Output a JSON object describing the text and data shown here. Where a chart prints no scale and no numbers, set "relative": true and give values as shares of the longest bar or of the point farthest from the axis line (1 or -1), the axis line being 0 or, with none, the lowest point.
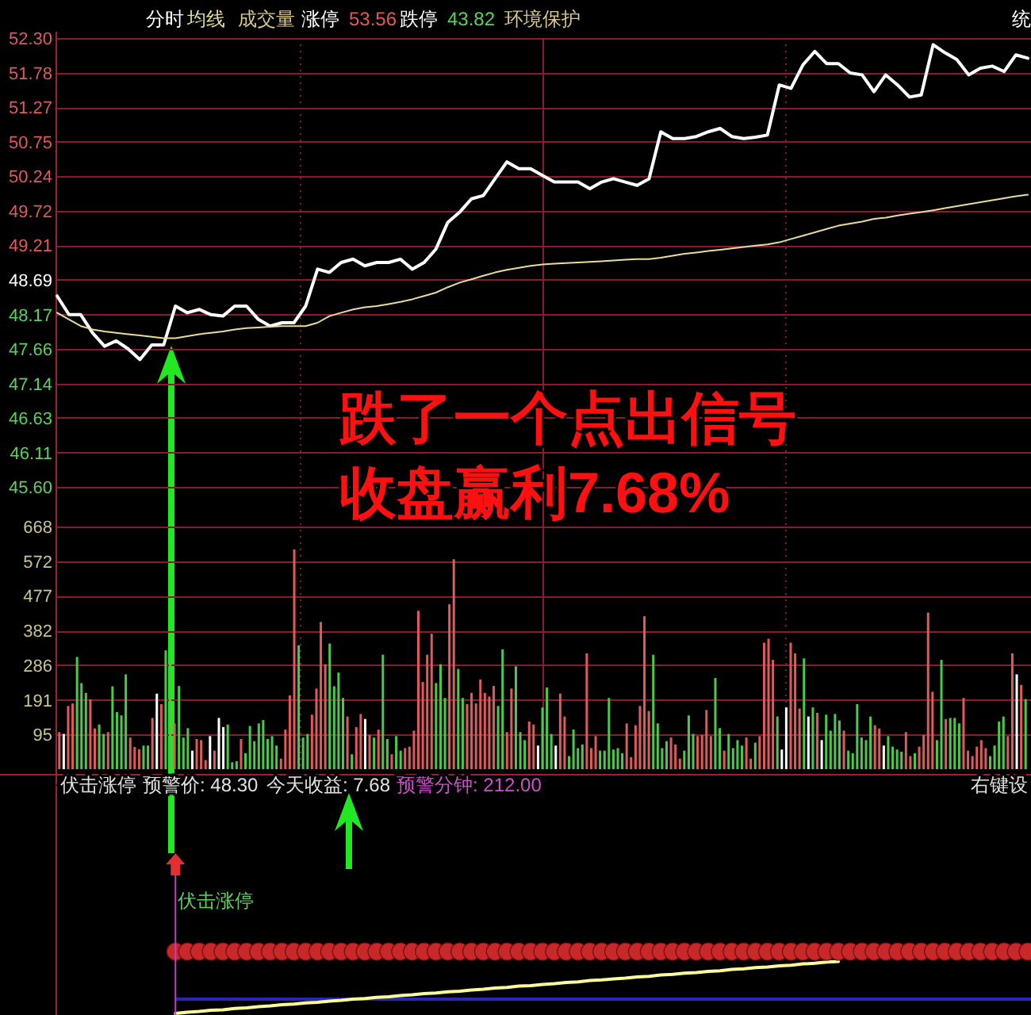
{
  "chart_data": [
    {
      "type": "line",
      "categories": [
        null,
        null,
        null,
        null,
        null,
        null,
        null,
        null,
        null,
        null,
        null,
        null,
        null,
        null,
        null,
        null,
        null,
        null,
        null,
        null,
        null,
        null,
        null,
        null,
        null,
        null,
        null,
        null,
        null,
        null,
        null,
        null,
        null,
        null,
        null,
        null,
        null,
        null,
        null,
        null,
        null,
        null,
        null,
        null,
        null,
        null,
        null,
        null,
        null,
        null,
        null,
        null,
        null,
        null,
        null,
        null,
        null,
        null,
        null,
        null,
        null,
        null,
        null,
        null,
        null,
        null,
        null,
        null,
        null,
        null,
        null,
        null,
        null,
        null,
        null,
        null,
        null,
        null,
        null,
        null,
        null,
        null,
        null
      ],
      "series": [
        {
          "name": "分时",
          "color": "#ffffff",
          "values": [
            48.45,
            48.17,
            48.17,
            47.9,
            47.7,
            47.78,
            47.66,
            47.5,
            47.72,
            47.72,
            48.3,
            48.2,
            48.25,
            48.17,
            48.15,
            48.3,
            48.3,
            48.1,
            48.0,
            48.05,
            48.05,
            48.3,
            48.85,
            48.8,
            48.95,
            49.0,
            48.9,
            48.95,
            48.95,
            49.0,
            48.85,
            48.95,
            49.15,
            49.55,
            49.7,
            49.9,
            49.95,
            50.2,
            50.45,
            50.35,
            50.35,
            50.25,
            50.15,
            50.15,
            50.15,
            50.05,
            50.15,
            50.2,
            50.15,
            50.1,
            50.2,
            50.9,
            50.8,
            50.8,
            50.83,
            50.9,
            50.95,
            50.83,
            50.8,
            50.82,
            50.85,
            51.6,
            51.55,
            51.9,
            52.1,
            51.92,
            51.92,
            51.78,
            51.75,
            51.5,
            51.75,
            51.6,
            51.42,
            51.45,
            52.2,
            52.08,
            51.98,
            51.75,
            51.85,
            51.88,
            51.8,
            52.05,
            52.0
          ]
        },
        {
          "name": "均线",
          "color": "#e8dc9c",
          "values": [
            48.2,
            48.1,
            48.0,
            47.95,
            47.92,
            47.9,
            47.88,
            47.86,
            47.84,
            47.82,
            47.82,
            47.85,
            47.88,
            47.9,
            47.92,
            47.95,
            47.97,
            47.98,
            47.99,
            48.0,
            48.0,
            48.0,
            48.05,
            48.15,
            48.2,
            48.25,
            48.28,
            48.3,
            48.33,
            48.36,
            48.4,
            48.45,
            48.5,
            48.58,
            48.65,
            48.7,
            48.75,
            48.8,
            48.84,
            48.87,
            48.9,
            48.92,
            48.93,
            48.94,
            48.95,
            48.96,
            48.97,
            48.98,
            48.99,
            49.0,
            49.0,
            49.02,
            49.05,
            49.08,
            49.1,
            49.12,
            49.14,
            49.16,
            49.18,
            49.2,
            49.22,
            49.25,
            49.3,
            49.35,
            49.4,
            49.45,
            49.5,
            49.53,
            49.56,
            49.6,
            49.62,
            49.65,
            49.68,
            49.7,
            49.73,
            49.76,
            49.79,
            49.82,
            49.85,
            49.88,
            49.91,
            49.94,
            49.96
          ]
        }
      ],
      "ylim": [
        45.6,
        52.3
      ],
      "yticks": [
        {
          "value": 45.6,
          "label": "45.60"
        },
        46.11,
        46.63,
        47.14,
        47.66,
        48.17,
        48.69,
        49.21,
        49.72,
        50.24,
        50.75,
        51.27,
        51.78,
        {
          "value": 52.3,
          "label": "52.30"
        }
      ],
      "grid": true,
      "legend": "top left",
      "tick_labels": "y",
      "annotations": [
        "成交量",
        "涨停",
        "53.56",
        "跌停",
        "43.82",
        "环境保护",
        "统",
        "跌了一个点出信号",
        "收盘赢利7.68%"
      ]
    },
    {
      "type": "bar",
      "categories": [
        null,
        null,
        null,
        null,
        null,
        null,
        null,
        null,
        null,
        null,
        null,
        null,
        null,
        null,
        null,
        null,
        null,
        null,
        null,
        null,
        null,
        null,
        null,
        null,
        null,
        null,
        null,
        null,
        null,
        null,
        null,
        null,
        null,
        null,
        null,
        null,
        null,
        null,
        null,
        null,
        null,
        null,
        null,
        null,
        null,
        null,
        null,
        null,
        null,
        null,
        null,
        null,
        null,
        null,
        null,
        null,
        null,
        null,
        null,
        null,
        null,
        null,
        null,
        null,
        null,
        null,
        null,
        null,
        null,
        null,
        null,
        null,
        null,
        null,
        null,
        null,
        null,
        null,
        null,
        null,
        null,
        null,
        null,
        null,
        null,
        null,
        null,
        null,
        null,
        null,
        null,
        null,
        null,
        null,
        null,
        null,
        null,
        null,
        null,
        null,
        null,
        null,
        null,
        null,
        null,
        null,
        null,
        null,
        null,
        null,
        null,
        null,
        null,
        null,
        null,
        null,
        null,
        null,
        null,
        null,
        null,
        null,
        null,
        null,
        null,
        null,
        null,
        null,
        null,
        null,
        null,
        null,
        null,
        null,
        null,
        null,
        null,
        null,
        null,
        null,
        null,
        null,
        null,
        null,
        null,
        null,
        null,
        null,
        null,
        null,
        null,
        null,
        null,
        null,
        null,
        null,
        null,
        null,
        null,
        null,
        null,
        null,
        null,
        null,
        null,
        null,
        null,
        null,
        null,
        null,
        null,
        null,
        null,
        null,
        null,
        null,
        null,
        null,
        null,
        null,
        null,
        null,
        null,
        null,
        null,
        null,
        null,
        null,
        null,
        null,
        null,
        null,
        null,
        null,
        null,
        null,
        null,
        null,
        null,
        null,
        null,
        null,
        null,
        null,
        null,
        null,
        null,
        null,
        null,
        null,
        null,
        null,
        null,
        null,
        null,
        null,
        null,
        null,
        null
      ],
      "values": [
        102,
        97,
        174,
        181,
        309,
        237,
        210,
        192,
        112,
        123,
        97,
        102,
        228,
        157,
        148,
        261,
        87,
        61,
        55,
        65,
        65,
        141,
        208,
        179,
        327,
        308,
        126,
        229,
        87,
        113,
        51,
        83,
        80,
        25,
        91,
        51,
        141,
        116,
        123,
        19,
        22,
        83,
        44,
        119,
        77,
        126,
        135,
        83,
        91,
        65,
        29,
        109,
        203,
        605,
        341,
        87,
        97,
        150,
        222,
        405,
        289,
        346,
        228,
        266,
        196,
        145,
        41,
        116,
        152,
        138,
        94,
        87,
        109,
        315,
        83,
        41,
        91,
        51,
        58,
        62,
        106,
        436,
        240,
        315,
        373,
        237,
        289,
        196,
        454,
        578,
        276,
        196,
        179,
        210,
        181,
        247,
        210,
        200,
        229,
        174,
        330,
        102,
        222,
        283,
        102,
        80,
        131,
        123,
        65,
        170,
        225,
        97,
        65,
        208,
        145,
        36,
        109,
        58,
        68,
        319,
        58,
        91,
        51,
        51,
        196,
        54,
        58,
        44,
        126,
        33,
        121,
        174,
        421,
        160,
        315,
        126,
        58,
        77,
        87,
        68,
        29,
        51,
        148,
        97,
        91,
        94,
        163,
        91,
        251,
        113,
        51,
        97,
        58,
        80,
        65,
        87,
        29,
        73,
        91,
        348,
        359,
        301,
        145,
        54,
        170,
        348,
        319,
        167,
        305,
        145,
        170,
        155,
        80,
        150,
        106,
        152,
        134,
        106,
        51,
        44,
        179,
        87,
        80,
        145,
        121,
        112,
        65,
        91,
        62,
        54,
        48,
        102,
        36,
        44,
        62,
        94,
        431,
        213,
        80,
        301,
        138,
        141,
        141,
        126,
        196,
        51,
        36,
        62,
        80,
        58,
        36,
        65,
        131,
        145,
        91,
        319,
        261,
        232,
        193
      ],
      "colors": [
        "#e05a5a",
        "#ffffff",
        "#e05a5a",
        "#e05a5a",
        "#4cc84c",
        "#4cc84c",
        "#4cc84c",
        "#e05a5a",
        "#e05a5a",
        "#4cc84c",
        "#4cc84c",
        "#e05a5a",
        "#4cc84c",
        "#4cc84c",
        "#4cc84c",
        "#4cc84c",
        "#e05a5a",
        "#e05a5a",
        "#e05a5a",
        "#4cc84c",
        "#4cc84c",
        "#e05a5a",
        "#ffffff",
        "#e05a5a",
        "#4cc84c",
        "#4cc84c",
        "#e05a5a",
        "#4cc84c",
        "#4cc84c",
        "#4cc84c",
        "#ffffff",
        "#e05a5a",
        "#e05a5a",
        "#e05a5a",
        "#ffffff",
        "#e05a5a",
        "#ffffff",
        "#ffffff",
        "#4cc84c",
        "#4cc84c",
        "#4cc84c",
        "#e05a5a",
        "#4cc84c",
        "#4cc84c",
        "#4cc84c",
        "#4cc84c",
        "#4cc84c",
        "#4cc84c",
        "#4cc84c",
        "#4cc84c",
        "#e05a5a",
        "#e05a5a",
        "#e05a5a",
        "#e05a5a",
        "#4cc84c",
        "#4cc84c",
        "#4cc84c",
        "#e05a5a",
        "#e05a5a",
        "#e05a5a",
        "#e05a5a",
        "#4cc84c",
        "#4cc84c",
        "#4cc84c",
        "#4cc84c",
        "#e05a5a",
        "#4cc84c",
        "#e05a5a",
        "#e05a5a",
        "#ffffff",
        "#e05a5a",
        "#4cc84c",
        "#e05a5a",
        "#4cc84c",
        "#4cc84c",
        "#e05a5a",
        "#4cc84c",
        "#4cc84c",
        "#e05a5a",
        "#e05a5a",
        "#e05a5a",
        "#e05a5a",
        "#e05a5a",
        "#e05a5a",
        "#e05a5a",
        "#4cc84c",
        "#4cc84c",
        "#4cc84c",
        "#e05a5a",
        "#e05a5a",
        "#4cc84c",
        "#4cc84c",
        "#e05a5a",
        "#e05a5a",
        "#e05a5a",
        "#e05a5a",
        "#e05a5a",
        "#e05a5a",
        "#e05a5a",
        "#4cc84c",
        "#4cc84c",
        "#e05a5a",
        "#e05a5a",
        "#4cc84c",
        "#4cc84c",
        "#4cc84c",
        "#e05a5a",
        "#e05a5a",
        "#ffffff",
        "#4cc84c",
        "#4cc84c",
        "#4cc84c",
        "#ffffff",
        "#e05a5a",
        "#e05a5a",
        "#4cc84c",
        "#4cc84c",
        "#4cc84c",
        "#4cc84c",
        "#e05a5a",
        "#e05a5a",
        "#e05a5a",
        "#4cc84c",
        "#4cc84c",
        "#4cc84c",
        "#4cc84c",
        "#4cc84c",
        "#4cc84c",
        "#e05a5a",
        "#e05a5a",
        "#e05a5a",
        "#e05a5a",
        "#e05a5a",
        "#e05a5a",
        "#4cc84c",
        "#4cc84c",
        "#4cc84c",
        "#4cc84c",
        "#e05a5a",
        "#e05a5a",
        "#e05a5a",
        "#4cc84c",
        "#4cc84c",
        "#4cc84c",
        "#e05a5a",
        "#e05a5a",
        "#e05a5a",
        "#e05a5a",
        "#4cc84c",
        "#4cc84c",
        "#e05a5a",
        "#4cc84c",
        "#4cc84c",
        "#4cc84c",
        "#4cc84c",
        "#e05a5a",
        "#e05a5a",
        "#4cc84c",
        "#e05a5a",
        "#e05a5a",
        "#e05a5a",
        "#e05a5a",
        "#4cc84c",
        "#ffffff",
        "#ffffff",
        "#e05a5a",
        "#e05a5a",
        "#e05a5a",
        "#4cc84c",
        "#ffffff",
        "#4cc84c",
        "#e05a5a",
        "#ffffff",
        "#4cc84c",
        "#4cc84c",
        "#4cc84c",
        "#4cc84c",
        "#e05a5a",
        "#4cc84c",
        "#4cc84c",
        "#4cc84c",
        "#4cc84c",
        "#4cc84c",
        "#4cc84c",
        "#e05a5a",
        "#e05a5a",
        "#ffffff",
        "#4cc84c",
        "#4cc84c",
        "#4cc84c",
        "#4cc84c",
        "#e05a5a",
        "#e05a5a",
        "#4cc84c",
        "#e05a5a",
        "#e05a5a",
        "#e05a5a",
        "#e05a5a",
        "#4cc84c",
        "#4cc84c",
        "#e05a5a",
        "#4cc84c",
        "#4cc84c",
        "#4cc84c",
        "#e05a5a",
        "#e05a5a",
        "#e05a5a",
        "#e05a5a",
        "#e05a5a",
        "#e05a5a",
        "#4cc84c",
        "#4cc84c",
        "#4cc84c",
        "#4cc84c",
        "#e05a5a",
        "#e05a5a",
        "#ffffff",
        "#e05a5a",
        "#4cc84c"
      ],
      "ylim": [
        0,
        764
      ],
      "yticks": [
        95,
        191,
        286,
        382,
        477,
        572,
        668
      ],
      "grid": true,
      "tick_labels": "y"
    },
    {
      "type": "line",
      "relative": true,
      "categories": [
        null,
        null,
        null,
        null,
        null,
        null,
        null,
        null,
        null,
        null,
        null,
        null,
        null,
        null,
        null,
        null,
        null,
        null,
        null,
        null,
        null,
        null,
        null,
        null,
        null,
        null,
        null,
        null,
        null,
        null,
        null,
        null,
        null,
        null,
        null,
        null,
        null,
        null,
        null,
        null,
        null,
        null,
        null,
        null,
        null,
        null,
        null,
        null,
        null,
        null,
        null,
        null,
        null,
        null,
        null,
        null,
        null,
        null,
        null,
        null,
        null,
        null,
        null,
        null,
        null,
        null,
        null,
        null,
        null,
        null,
        null,
        null,
        null,
        null,
        null,
        null,
        null,
        null,
        null,
        null,
        null,
        null,
        null
      ],
      "series": [
        {
          "color": "#ffff99",
          "values": [
            null,
            null,
            null,
            null,
            null,
            null,
            null,
            null,
            null,
            null,
            0,
            0.02,
            0.03,
            0.05,
            0.06,
            0.08,
            0.09,
            0.11,
            0.12,
            0.14,
            0.15,
            0.17,
            0.18,
            0.2,
            0.21,
            0.23,
            0.24,
            0.26,
            0.27,
            0.29,
            0.3,
            0.32,
            0.33,
            0.35,
            0.36,
            0.38,
            0.39,
            0.41,
            0.42,
            0.44,
            0.45,
            0.47,
            0.48,
            0.5,
            0.51,
            0.53,
            0.54,
            0.56,
            0.57,
            0.59,
            0.6,
            0.62,
            0.63,
            0.65,
            0.66,
            0.68,
            0.69,
            0.71,
            0.72,
            0.74,
            0.75,
            0.77,
            0.78,
            0.8,
            0.81,
            0.83,
            0.84,
            null,
            null,
            null,
            null,
            null,
            null,
            null,
            null,
            null,
            null,
            null,
            null,
            null,
            null,
            null,
            null
          ]
        },
        {
          "type": "scatter",
          "marker": "circle",
          "color": "#c82828",
          "values": [
            null,
            null,
            null,
            null,
            null,
            null,
            null,
            null,
            null,
            null,
            1,
            1,
            1,
            1,
            1,
            1,
            1,
            1,
            1,
            1,
            1,
            1,
            1,
            1,
            1,
            1,
            1,
            1,
            1,
            1,
            1,
            1,
            1,
            1,
            1,
            1,
            1,
            1,
            1,
            1,
            1,
            1,
            1,
            1,
            1,
            1,
            1,
            1,
            1,
            1,
            1,
            1,
            1,
            1,
            1,
            1,
            1,
            1,
            1,
            1,
            1,
            1,
            1,
            1,
            1,
            1,
            1,
            1,
            1,
            1,
            1,
            1,
            1,
            1,
            1,
            1,
            1,
            1,
            1,
            1,
            1,
            1,
            1
          ]
        }
      ],
      "ref_lines": [
        {
          "axis": "y",
          "value": 0.23,
          "color": "#2828b8"
        }
      ],
      "tick_labels": false,
      "annotations": [
        "伏击涨停",
        "预警价: 48.30",
        "今天收益: 7.68",
        "预警分钟: 212.00",
        "右键设",
        "伏击涨停"
      ]
    }
  ]
}
